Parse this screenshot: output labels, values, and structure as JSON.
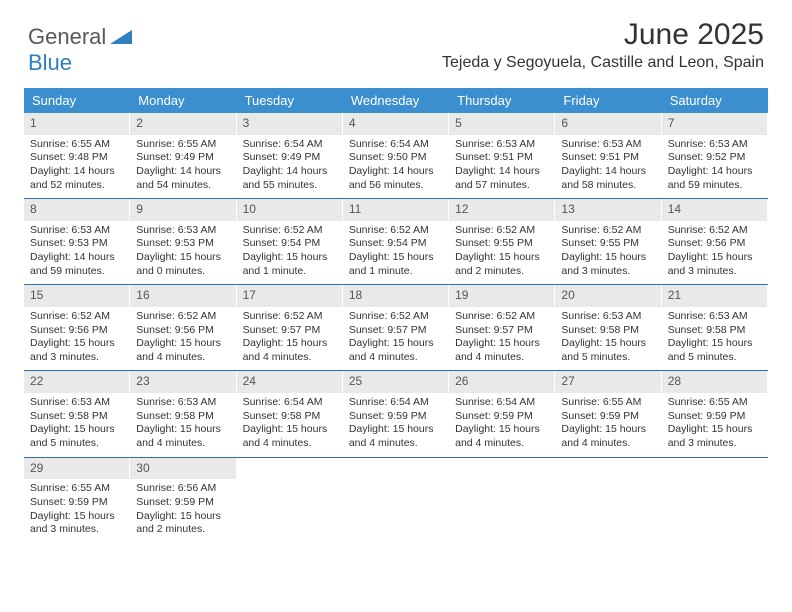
{
  "logo": {
    "word1": "General",
    "word2": "Blue"
  },
  "title": "June 2025",
  "location": "Tejeda y Segoyuela, Castille and Leon, Spain",
  "colors": {
    "header_bg": "#3b8fce",
    "header_text": "#ffffff",
    "daynum_bg": "#e9e9e9",
    "week_border": "#2f6fa8",
    "logo_accent": "#2f7fc1",
    "logo_gray": "#5a5a5a",
    "body_text": "#333333"
  },
  "day_names": [
    "Sunday",
    "Monday",
    "Tuesday",
    "Wednesday",
    "Thursday",
    "Friday",
    "Saturday"
  ],
  "weeks": [
    [
      {
        "n": "1",
        "sunrise": "6:55 AM",
        "sunset": "9:48 PM",
        "daylight": "14 hours and 52 minutes."
      },
      {
        "n": "2",
        "sunrise": "6:55 AM",
        "sunset": "9:49 PM",
        "daylight": "14 hours and 54 minutes."
      },
      {
        "n": "3",
        "sunrise": "6:54 AM",
        "sunset": "9:49 PM",
        "daylight": "14 hours and 55 minutes."
      },
      {
        "n": "4",
        "sunrise": "6:54 AM",
        "sunset": "9:50 PM",
        "daylight": "14 hours and 56 minutes."
      },
      {
        "n": "5",
        "sunrise": "6:53 AM",
        "sunset": "9:51 PM",
        "daylight": "14 hours and 57 minutes."
      },
      {
        "n": "6",
        "sunrise": "6:53 AM",
        "sunset": "9:51 PM",
        "daylight": "14 hours and 58 minutes."
      },
      {
        "n": "7",
        "sunrise": "6:53 AM",
        "sunset": "9:52 PM",
        "daylight": "14 hours and 59 minutes."
      }
    ],
    [
      {
        "n": "8",
        "sunrise": "6:53 AM",
        "sunset": "9:53 PM",
        "daylight": "14 hours and 59 minutes."
      },
      {
        "n": "9",
        "sunrise": "6:53 AM",
        "sunset": "9:53 PM",
        "daylight": "15 hours and 0 minutes."
      },
      {
        "n": "10",
        "sunrise": "6:52 AM",
        "sunset": "9:54 PM",
        "daylight": "15 hours and 1 minute."
      },
      {
        "n": "11",
        "sunrise": "6:52 AM",
        "sunset": "9:54 PM",
        "daylight": "15 hours and 1 minute."
      },
      {
        "n": "12",
        "sunrise": "6:52 AM",
        "sunset": "9:55 PM",
        "daylight": "15 hours and 2 minutes."
      },
      {
        "n": "13",
        "sunrise": "6:52 AM",
        "sunset": "9:55 PM",
        "daylight": "15 hours and 3 minutes."
      },
      {
        "n": "14",
        "sunrise": "6:52 AM",
        "sunset": "9:56 PM",
        "daylight": "15 hours and 3 minutes."
      }
    ],
    [
      {
        "n": "15",
        "sunrise": "6:52 AM",
        "sunset": "9:56 PM",
        "daylight": "15 hours and 3 minutes."
      },
      {
        "n": "16",
        "sunrise": "6:52 AM",
        "sunset": "9:56 PM",
        "daylight": "15 hours and 4 minutes."
      },
      {
        "n": "17",
        "sunrise": "6:52 AM",
        "sunset": "9:57 PM",
        "daylight": "15 hours and 4 minutes."
      },
      {
        "n": "18",
        "sunrise": "6:52 AM",
        "sunset": "9:57 PM",
        "daylight": "15 hours and 4 minutes."
      },
      {
        "n": "19",
        "sunrise": "6:52 AM",
        "sunset": "9:57 PM",
        "daylight": "15 hours and 4 minutes."
      },
      {
        "n": "20",
        "sunrise": "6:53 AM",
        "sunset": "9:58 PM",
        "daylight": "15 hours and 5 minutes."
      },
      {
        "n": "21",
        "sunrise": "6:53 AM",
        "sunset": "9:58 PM",
        "daylight": "15 hours and 5 minutes."
      }
    ],
    [
      {
        "n": "22",
        "sunrise": "6:53 AM",
        "sunset": "9:58 PM",
        "daylight": "15 hours and 5 minutes."
      },
      {
        "n": "23",
        "sunrise": "6:53 AM",
        "sunset": "9:58 PM",
        "daylight": "15 hours and 4 minutes."
      },
      {
        "n": "24",
        "sunrise": "6:54 AM",
        "sunset": "9:58 PM",
        "daylight": "15 hours and 4 minutes."
      },
      {
        "n": "25",
        "sunrise": "6:54 AM",
        "sunset": "9:59 PM",
        "daylight": "15 hours and 4 minutes."
      },
      {
        "n": "26",
        "sunrise": "6:54 AM",
        "sunset": "9:59 PM",
        "daylight": "15 hours and 4 minutes."
      },
      {
        "n": "27",
        "sunrise": "6:55 AM",
        "sunset": "9:59 PM",
        "daylight": "15 hours and 4 minutes."
      },
      {
        "n": "28",
        "sunrise": "6:55 AM",
        "sunset": "9:59 PM",
        "daylight": "15 hours and 3 minutes."
      }
    ],
    [
      {
        "n": "29",
        "sunrise": "6:55 AM",
        "sunset": "9:59 PM",
        "daylight": "15 hours and 3 minutes."
      },
      {
        "n": "30",
        "sunrise": "6:56 AM",
        "sunset": "9:59 PM",
        "daylight": "15 hours and 2 minutes."
      },
      null,
      null,
      null,
      null,
      null
    ]
  ],
  "labels": {
    "sunrise": "Sunrise: ",
    "sunset": "Sunset: ",
    "daylight": "Daylight: "
  }
}
